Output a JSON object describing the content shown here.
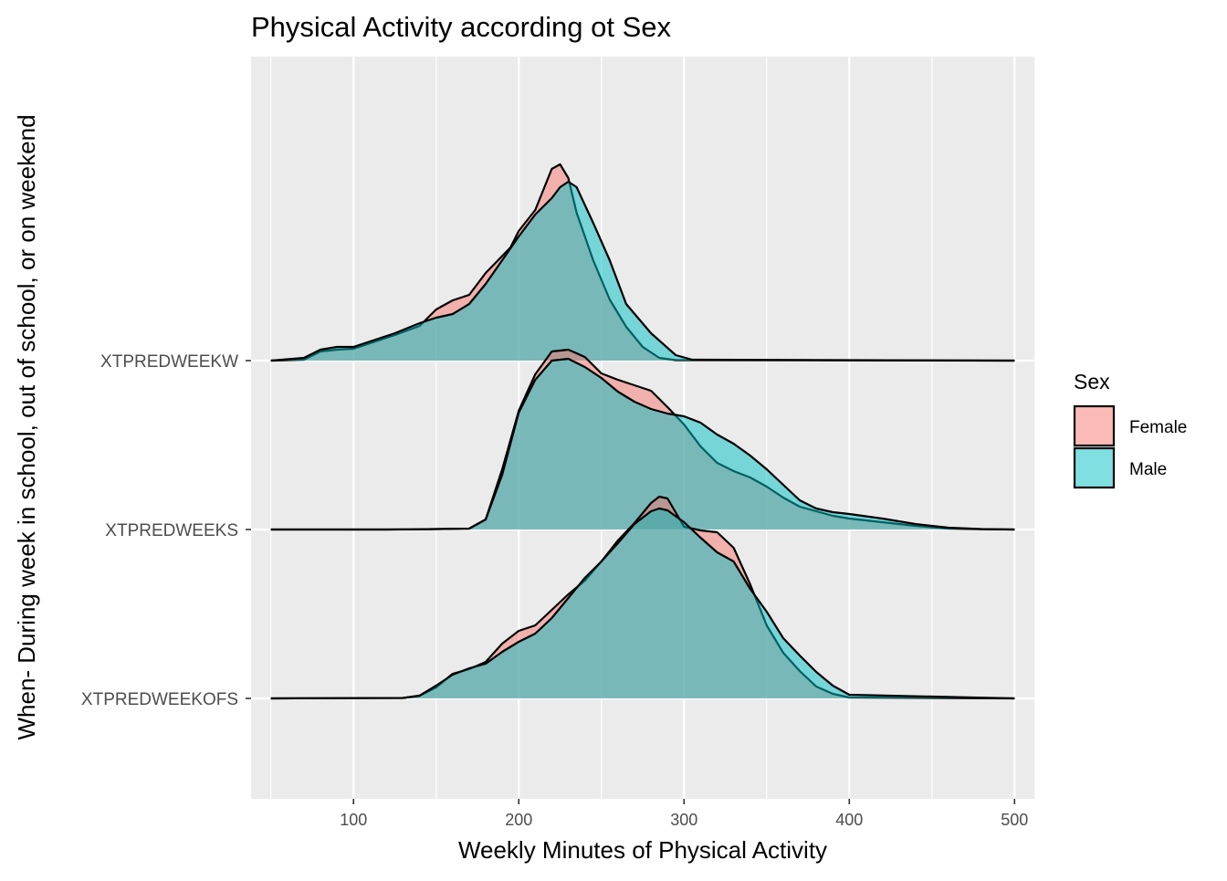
{
  "chart_data": {
    "type": "ridgeline-density",
    "title": "Physical Activity according ot Sex",
    "xlabel": "Weekly Minutes of Physical Activity",
    "ylabel": "When- During week in school, out of school, or on weekend",
    "xlim": [
      38,
      512
    ],
    "x_ticks": [
      "100",
      "200",
      "300",
      "400",
      "500"
    ],
    "x_tick_values": [
      100,
      200,
      300,
      400,
      500
    ],
    "categories": [
      "XTPREDWEEKOFS",
      "XTPREDWEEKS",
      "XTPREDWEEKW"
    ],
    "grid": true,
    "legend": {
      "title": "Sex",
      "position": "right",
      "entries": [
        {
          "label": "Female",
          "color": "#F8766D"
        },
        {
          "label": "Male",
          "color": "#00BFC4"
        }
      ]
    },
    "ridges": [
      {
        "category": "XTPREDWEEKW",
        "series": [
          {
            "name": "Female",
            "points": [
              [
                50,
                0
              ],
              [
                70,
                1
              ],
              [
                80,
                10
              ],
              [
                90,
                12
              ],
              [
                100,
                13
              ],
              [
                110,
                19
              ],
              [
                125,
                28
              ],
              [
                140,
                38
              ],
              [
                150,
                56
              ],
              [
                160,
                66
              ],
              [
                170,
                72
              ],
              [
                180,
                96
              ],
              [
                195,
                124
              ],
              [
                200,
                142
              ],
              [
                210,
                165
              ],
              [
                220,
                210
              ],
              [
                225,
                215
              ],
              [
                230,
                200
              ],
              [
                235,
                162
              ],
              [
                245,
                110
              ],
              [
                255,
                67
              ],
              [
                265,
                37
              ],
              [
                275,
                15
              ],
              [
                285,
                3
              ],
              [
                295,
                0.5
              ],
              [
                500,
                0
              ]
            ]
          },
          {
            "name": "Male",
            "points": [
              [
                50,
                0
              ],
              [
                70,
                3
              ],
              [
                80,
                12
              ],
              [
                90,
                15
              ],
              [
                100,
                15
              ],
              [
                110,
                21
              ],
              [
                125,
                30
              ],
              [
                140,
                41
              ],
              [
                150,
                47
              ],
              [
                160,
                51
              ],
              [
                170,
                62
              ],
              [
                180,
                84
              ],
              [
                195,
                123
              ],
              [
                200,
                136
              ],
              [
                210,
                160
              ],
              [
                220,
                178
              ],
              [
                225,
                190
              ],
              [
                230,
                196
              ],
              [
                235,
                190
              ],
              [
                245,
                151
              ],
              [
                255,
                110
              ],
              [
                265,
                62
              ],
              [
                280,
                30
              ],
              [
                295,
                6
              ],
              [
                305,
                1
              ],
              [
                500,
                0
              ]
            ]
          }
        ]
      },
      {
        "category": "XTPREDWEEKS",
        "series": [
          {
            "name": "Female",
            "points": [
              [
                50,
                0
              ],
              [
                120,
                0
              ],
              [
                135,
                0.2
              ],
              [
                150,
                0.5
              ],
              [
                170,
                1
              ],
              [
                180,
                11
              ],
              [
                190,
                66
              ],
              [
                200,
                130
              ],
              [
                210,
                170
              ],
              [
                220,
                195
              ],
              [
                230,
                197
              ],
              [
                240,
                189
              ],
              [
                250,
                171
              ],
              [
                260,
                164
              ],
              [
                270,
                158
              ],
              [
                280,
                152
              ],
              [
                290,
                134
              ],
              [
                300,
                115
              ],
              [
                310,
                91
              ],
              [
                320,
                73
              ],
              [
                330,
                64
              ],
              [
                340,
                57
              ],
              [
                350,
                47
              ],
              [
                360,
                35
              ],
              [
                370,
                25
              ],
              [
                380,
                20
              ],
              [
                390,
                15
              ],
              [
                400,
                12
              ],
              [
                420,
                8
              ],
              [
                440,
                4
              ],
              [
                460,
                1
              ],
              [
                480,
                0.3
              ],
              [
                500,
                0
              ]
            ]
          },
          {
            "name": "Male",
            "points": [
              [
                50,
                0
              ],
              [
                120,
                0
              ],
              [
                135,
                0.2
              ],
              [
                150,
                0.5
              ],
              [
                170,
                1
              ],
              [
                180,
                11
              ],
              [
                190,
                60
              ],
              [
                200,
                128
              ],
              [
                210,
                164
              ],
              [
                220,
                185
              ],
              [
                230,
                187
              ],
              [
                240,
                178
              ],
              [
                250,
                166
              ],
              [
                260,
                151
              ],
              [
                270,
                140
              ],
              [
                280,
                132
              ],
              [
                290,
                127
              ],
              [
                300,
                124
              ],
              [
                310,
                117
              ],
              [
                320,
                104
              ],
              [
                330,
                94
              ],
              [
                340,
                81
              ],
              [
                350,
                66
              ],
              [
                360,
                49
              ],
              [
                370,
                32
              ],
              [
                380,
                23
              ],
              [
                390,
                19
              ],
              [
                400,
                17
              ],
              [
                420,
                12
              ],
              [
                440,
                6
              ],
              [
                460,
                2
              ],
              [
                480,
                0.5
              ],
              [
                500,
                0
              ]
            ]
          }
        ]
      },
      {
        "category": "XTPREDWEEKOFS",
        "series": [
          {
            "name": "Female",
            "points": [
              [
                50,
                0
              ],
              [
                130,
                0.5
              ],
              [
                140,
                3
              ],
              [
                150,
                12
              ],
              [
                160,
                27
              ],
              [
                170,
                32
              ],
              [
                180,
                40
              ],
              [
                190,
                60
              ],
              [
                200,
                74
              ],
              [
                210,
                80
              ],
              [
                220,
                97
              ],
              [
                230,
                114
              ],
              [
                240,
                129
              ],
              [
                250,
                150
              ],
              [
                260,
                173
              ],
              [
                270,
                192
              ],
              [
                280,
                214
              ],
              [
                285,
                221
              ],
              [
                290,
                219
              ],
              [
                300,
                188
              ],
              [
                310,
                184
              ],
              [
                320,
                182
              ],
              [
                330,
                165
              ],
              [
                340,
                125
              ],
              [
                350,
                80
              ],
              [
                360,
                50
              ],
              [
                370,
                30
              ],
              [
                380,
                13
              ],
              [
                390,
                5
              ],
              [
                400,
                1
              ],
              [
                500,
                0
              ]
            ]
          },
          {
            "name": "Male",
            "points": [
              [
                50,
                0
              ],
              [
                130,
                0.5
              ],
              [
                140,
                3
              ],
              [
                150,
                14
              ],
              [
                160,
                26
              ],
              [
                170,
                33
              ],
              [
                180,
                38
              ],
              [
                190,
                51
              ],
              [
                200,
                62
              ],
              [
                210,
                71
              ],
              [
                220,
                88
              ],
              [
                230,
                110
              ],
              [
                240,
                132
              ],
              [
                250,
                150
              ],
              [
                260,
                170
              ],
              [
                270,
                191
              ],
              [
                280,
                205
              ],
              [
                285,
                208
              ],
              [
                290,
                206
              ],
              [
                300,
                193
              ],
              [
                310,
                176
              ],
              [
                320,
                160
              ],
              [
                330,
                150
              ],
              [
                340,
                120
              ],
              [
                350,
                95
              ],
              [
                360,
                66
              ],
              [
                370,
                47
              ],
              [
                380,
                29
              ],
              [
                390,
                14
              ],
              [
                400,
                4
              ],
              [
                500,
                0
              ]
            ]
          }
        ]
      }
    ]
  }
}
